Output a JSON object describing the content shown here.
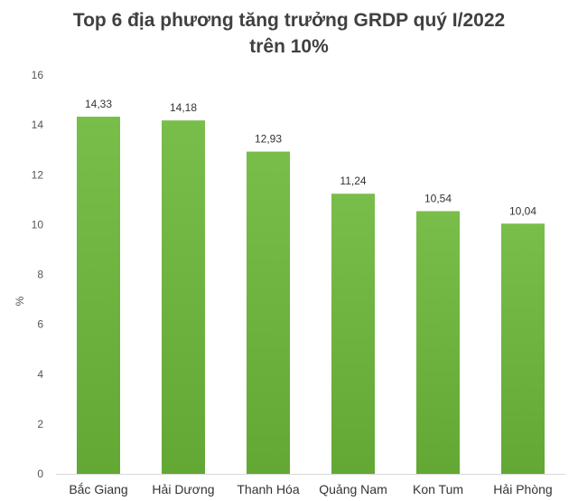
{
  "chart_data": {
    "type": "bar",
    "title_line1": "Top 6 địa phương tăng trưởng GRDP quý I/2022",
    "title_line2": "trên 10%",
    "ylabel": "%",
    "xlabel": "",
    "ylim": [
      0,
      16
    ],
    "yticks": [
      0,
      2,
      4,
      6,
      8,
      10,
      12,
      14,
      16
    ],
    "grid": false,
    "legend": "none",
    "categories": [
      "Bắc Giang",
      "Hải Dương",
      "Thanh Hóa",
      "Quảng Nam",
      "Kon Tum",
      "Hải Phòng"
    ],
    "values": [
      14.33,
      14.18,
      12.93,
      11.24,
      10.54,
      10.04
    ],
    "value_labels": [
      "14,33",
      "14,18",
      "12,93",
      "11,24",
      "10,54",
      "10,04"
    ],
    "bar_color": "#6fb33f"
  }
}
